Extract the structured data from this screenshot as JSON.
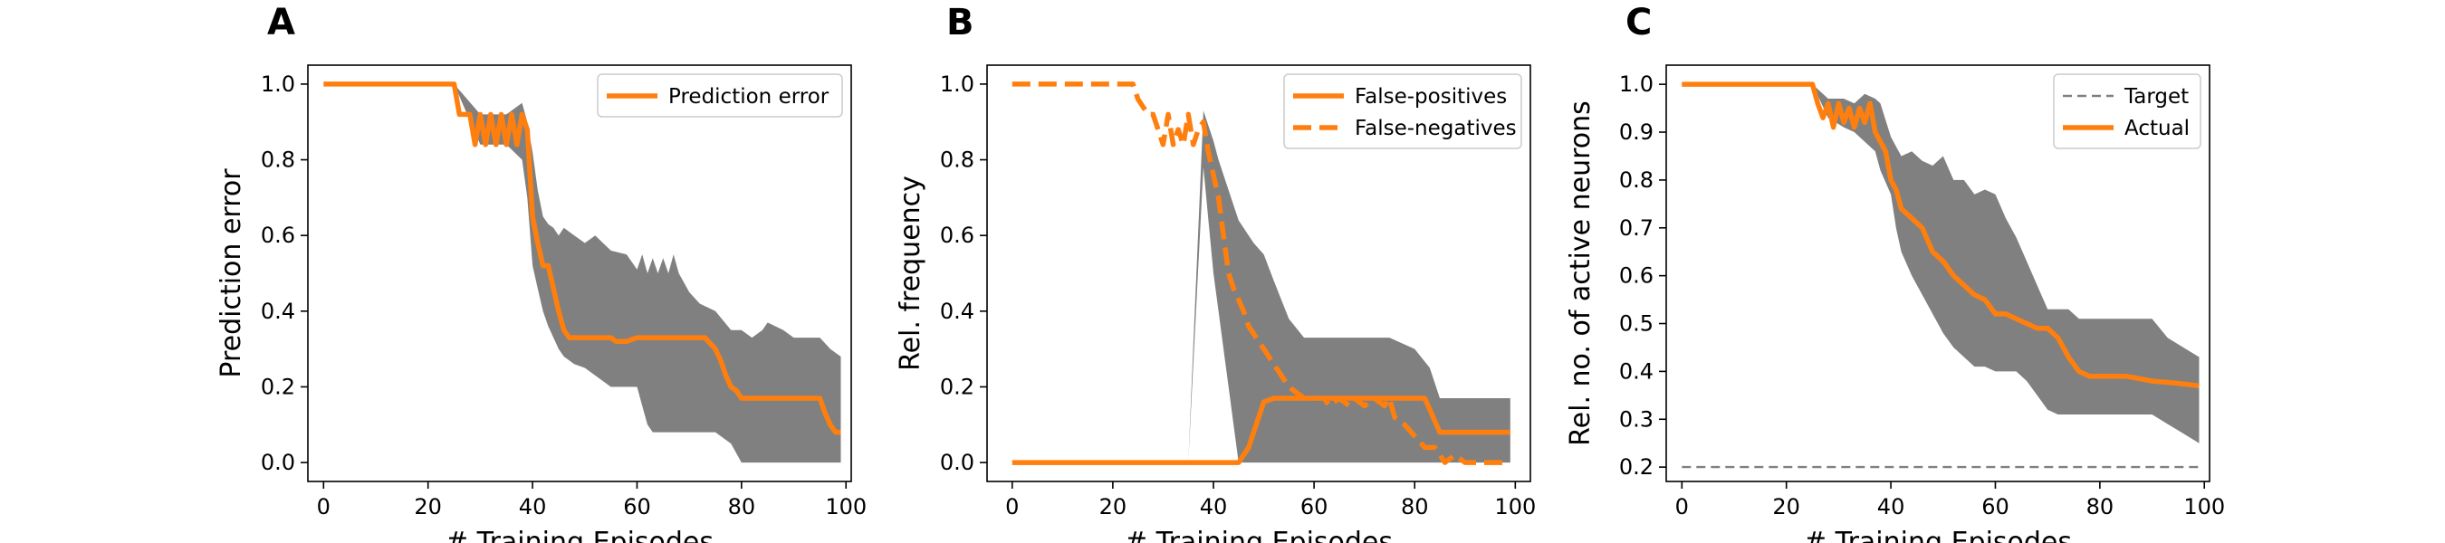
{
  "figure": {
    "panels": [
      {
        "letter": "A",
        "xlabel": "# Training Episodes",
        "ylabel": "Prediction error"
      },
      {
        "letter": "B",
        "xlabel": "# Training Episodes",
        "ylabel": "Rel. frequency"
      },
      {
        "letter": "C",
        "xlabel": "# Training Episodes",
        "ylabel": "Rel. no. of active neurons"
      }
    ]
  },
  "chart_data": [
    {
      "type": "line",
      "title": "",
      "xlabel": "# Training Episodes",
      "ylabel": "Prediction error",
      "xlim": [
        -3,
        101
      ],
      "ylim": [
        -0.05,
        1.05
      ],
      "xticks": [
        0,
        20,
        40,
        60,
        80,
        100
      ],
      "yticks": [
        0.0,
        0.2,
        0.4,
        0.6,
        0.8,
        1.0
      ],
      "ytick_labels": [
        "0.0",
        "0.2",
        "0.4",
        "0.6",
        "0.8",
        "1.0"
      ],
      "legend_position": "top-right",
      "grid": false,
      "series": [
        {
          "name": "Prediction error",
          "style": "solid",
          "color": "#ff7f0e",
          "x": [
            0,
            25,
            26,
            28,
            29,
            30,
            31,
            32,
            33,
            34,
            35,
            36,
            37,
            38,
            39,
            40,
            41,
            42,
            43,
            44,
            45,
            46,
            47,
            48,
            50,
            55,
            56,
            58,
            60,
            65,
            70,
            73,
            75,
            76,
            77,
            78,
            79,
            80,
            82,
            85,
            90,
            95,
            96,
            97,
            98,
            99
          ],
          "y": [
            1.0,
            1.0,
            0.92,
            0.92,
            0.84,
            0.92,
            0.84,
            0.92,
            0.84,
            0.92,
            0.84,
            0.92,
            0.84,
            0.92,
            0.88,
            0.65,
            0.58,
            0.52,
            0.52,
            0.46,
            0.4,
            0.35,
            0.33,
            0.33,
            0.33,
            0.33,
            0.32,
            0.32,
            0.33,
            0.33,
            0.33,
            0.33,
            0.3,
            0.27,
            0.23,
            0.2,
            0.19,
            0.17,
            0.17,
            0.17,
            0.17,
            0.17,
            0.13,
            0.1,
            0.08,
            0.08
          ]
        }
      ],
      "band": {
        "color": "#808080",
        "x": [
          0,
          25,
          30,
          35,
          38,
          39,
          40,
          41,
          42,
          43,
          44,
          45,
          46,
          48,
          50,
          52,
          55,
          58,
          60,
          61,
          62,
          63,
          64,
          65,
          66,
          67,
          68,
          70,
          72,
          75,
          78,
          80,
          82,
          84,
          85,
          88,
          90,
          92,
          95,
          97,
          99
        ],
        "upper": [
          1.0,
          1.0,
          0.92,
          0.92,
          0.95,
          0.9,
          0.82,
          0.72,
          0.65,
          0.63,
          0.62,
          0.6,
          0.62,
          0.6,
          0.58,
          0.6,
          0.56,
          0.55,
          0.51,
          0.55,
          0.5,
          0.54,
          0.5,
          0.54,
          0.5,
          0.55,
          0.5,
          0.45,
          0.42,
          0.4,
          0.35,
          0.35,
          0.33,
          0.35,
          0.37,
          0.35,
          0.33,
          0.33,
          0.33,
          0.3,
          0.28
        ],
        "lower": [
          1.0,
          1.0,
          0.84,
          0.84,
          0.8,
          0.7,
          0.52,
          0.46,
          0.4,
          0.36,
          0.33,
          0.3,
          0.28,
          0.26,
          0.25,
          0.23,
          0.2,
          0.2,
          0.2,
          0.15,
          0.1,
          0.08,
          0.08,
          0.08,
          0.08,
          0.08,
          0.08,
          0.08,
          0.08,
          0.08,
          0.05,
          0.0,
          0.0,
          0.0,
          0.0,
          0.0,
          0.0,
          0.0,
          0.0,
          0.0,
          0.0
        ]
      }
    },
    {
      "type": "line",
      "title": "",
      "xlabel": "# Training Episodes",
      "ylabel": "Rel. frequency",
      "xlim": [
        -5,
        103
      ],
      "ylim": [
        -0.05,
        1.05
      ],
      "xticks": [
        0,
        20,
        40,
        60,
        80,
        100
      ],
      "yticks": [
        0.0,
        0.2,
        0.4,
        0.6,
        0.8,
        1.0
      ],
      "ytick_labels": [
        "0.0",
        "0.2",
        "0.4",
        "0.6",
        "0.8",
        "1.0"
      ],
      "legend_position": "top-right",
      "grid": false,
      "series": [
        {
          "name": "False-positives",
          "style": "solid",
          "color": "#ff7f0e",
          "x": [
            0,
            44,
            45,
            46,
            47,
            48,
            49,
            50,
            52,
            55,
            60,
            65,
            70,
            75,
            80,
            82,
            83,
            84,
            85,
            90,
            95,
            99
          ],
          "y": [
            0.0,
            0.0,
            0.0,
            0.02,
            0.04,
            0.08,
            0.12,
            0.16,
            0.17,
            0.17,
            0.17,
            0.17,
            0.17,
            0.17,
            0.17,
            0.17,
            0.14,
            0.11,
            0.08,
            0.08,
            0.08,
            0.08
          ]
        },
        {
          "name": "False-negatives",
          "style": "dashed",
          "color": "#ff7f0e",
          "x": [
            0,
            24,
            25,
            27,
            28,
            29,
            30,
            31,
            32,
            33,
            34,
            35,
            36,
            37,
            38,
            39,
            40,
            41,
            42,
            43,
            44,
            45,
            46,
            47,
            48,
            49,
            50,
            52,
            53,
            54,
            55,
            58,
            60,
            62,
            63,
            65,
            67,
            68,
            70,
            72,
            74,
            75,
            76,
            78,
            80,
            82,
            84,
            86,
            88,
            90,
            92,
            95,
            98
          ],
          "y": [
            1.0,
            1.0,
            0.96,
            0.92,
            0.92,
            0.88,
            0.84,
            0.92,
            0.84,
            0.88,
            0.84,
            0.92,
            0.84,
            0.88,
            0.9,
            0.82,
            0.76,
            0.7,
            0.6,
            0.5,
            0.46,
            0.43,
            0.4,
            0.36,
            0.34,
            0.32,
            0.3,
            0.26,
            0.24,
            0.22,
            0.2,
            0.17,
            0.17,
            0.17,
            0.15,
            0.17,
            0.15,
            0.17,
            0.15,
            0.17,
            0.15,
            0.17,
            0.12,
            0.1,
            0.07,
            0.04,
            0.04,
            0.0,
            0.02,
            0.0,
            0.0,
            0.0,
            0.0
          ]
        }
      ],
      "band": {
        "color": "#808080",
        "x": [
          0,
          25,
          30,
          35,
          38,
          40,
          41,
          42,
          43,
          44,
          45,
          46,
          47,
          48,
          50,
          52,
          55,
          58,
          60,
          62,
          65,
          70,
          75,
          80,
          83,
          85,
          90,
          95,
          99
        ],
        "upper": [
          0.0,
          0.0,
          0.0,
          0.0,
          0.93,
          0.85,
          0.8,
          0.76,
          0.72,
          0.68,
          0.64,
          0.62,
          0.6,
          0.58,
          0.55,
          0.48,
          0.38,
          0.33,
          0.33,
          0.33,
          0.33,
          0.33,
          0.33,
          0.3,
          0.25,
          0.17,
          0.17,
          0.17,
          0.17
        ],
        "lower": [
          0.0,
          0.0,
          0.0,
          0.0,
          0.78,
          0.5,
          0.4,
          0.3,
          0.2,
          0.1,
          0.0,
          0.0,
          0.0,
          0.0,
          0.0,
          0.0,
          0.0,
          0.0,
          0.0,
          0.0,
          0.0,
          0.0,
          0.0,
          0.0,
          0.0,
          0.0,
          0.0,
          0.0,
          0.0
        ]
      }
    },
    {
      "type": "line",
      "title": "",
      "xlabel": "# Training Episodes",
      "ylabel": "Rel. no. of active neurons",
      "xlim": [
        -3,
        101
      ],
      "ylim": [
        0.17,
        1.04
      ],
      "xticks": [
        0,
        20,
        40,
        60,
        80,
        100
      ],
      "yticks": [
        0.2,
        0.3,
        0.4,
        0.5,
        0.6,
        0.7,
        0.8,
        0.9,
        1.0
      ],
      "ytick_labels": [
        "0.2",
        "0.3",
        "0.4",
        "0.5",
        "0.6",
        "0.7",
        "0.8",
        "0.9",
        "1.0"
      ],
      "legend_position": "top-right",
      "grid": false,
      "series": [
        {
          "name": "Target",
          "style": "dashed",
          "color": "#808080",
          "x": [
            0,
            99
          ],
          "y": [
            0.2,
            0.2
          ]
        },
        {
          "name": "Actual",
          "style": "solid",
          "color": "#ff7f0e",
          "x": [
            0,
            25,
            26,
            27,
            28,
            29,
            30,
            31,
            32,
            33,
            34,
            35,
            36,
            37,
            38,
            39,
            40,
            41,
            42,
            44,
            46,
            48,
            50,
            52,
            54,
            56,
            58,
            60,
            62,
            64,
            66,
            68,
            70,
            72,
            74,
            76,
            78,
            80,
            85,
            90,
            95,
            99
          ],
          "y": [
            1.0,
            1.0,
            0.96,
            0.93,
            0.96,
            0.91,
            0.96,
            0.92,
            0.95,
            0.91,
            0.95,
            0.92,
            0.96,
            0.9,
            0.88,
            0.86,
            0.8,
            0.78,
            0.74,
            0.72,
            0.7,
            0.65,
            0.63,
            0.6,
            0.58,
            0.56,
            0.55,
            0.52,
            0.52,
            0.51,
            0.5,
            0.49,
            0.49,
            0.47,
            0.43,
            0.4,
            0.39,
            0.39,
            0.39,
            0.38,
            0.375,
            0.37
          ]
        }
      ],
      "band": {
        "color": "#808080",
        "x": [
          0,
          25,
          28,
          31,
          33,
          35,
          37,
          38,
          40,
          41,
          42,
          44,
          46,
          48,
          50,
          52,
          54,
          56,
          58,
          60,
          62,
          64,
          66,
          68,
          70,
          72,
          74,
          76,
          80,
          85,
          90,
          93,
          96,
          99
        ],
        "upper": [
          1.0,
          1.0,
          0.97,
          0.97,
          0.96,
          0.98,
          0.97,
          0.96,
          0.89,
          0.87,
          0.85,
          0.86,
          0.84,
          0.83,
          0.85,
          0.8,
          0.8,
          0.77,
          0.78,
          0.77,
          0.72,
          0.68,
          0.63,
          0.58,
          0.53,
          0.53,
          0.53,
          0.51,
          0.51,
          0.51,
          0.51,
          0.47,
          0.45,
          0.43
        ],
        "lower": [
          1.0,
          1.0,
          0.93,
          0.91,
          0.9,
          0.88,
          0.86,
          0.82,
          0.77,
          0.7,
          0.65,
          0.6,
          0.56,
          0.52,
          0.48,
          0.45,
          0.43,
          0.41,
          0.41,
          0.4,
          0.4,
          0.4,
          0.38,
          0.35,
          0.32,
          0.31,
          0.31,
          0.31,
          0.31,
          0.31,
          0.31,
          0.29,
          0.27,
          0.25
        ]
      }
    }
  ]
}
